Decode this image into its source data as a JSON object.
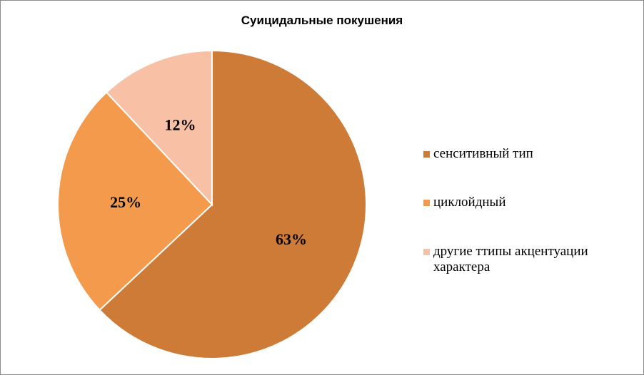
{
  "chart_data": {
    "type": "pie",
    "title": "Суицидальные покушения",
    "slices": [
      {
        "name": "сенситивный тип",
        "value": 63,
        "label": "63%",
        "color": "#cd7b37"
      },
      {
        "name": "циклойдный",
        "value": 25,
        "label": "25%",
        "color": "#f39a4c"
      },
      {
        "name": "другие ттипы акцентуации характера",
        "value": 12,
        "label": "12%",
        "color": "#f8c1a5"
      }
    ],
    "legend_position": "right"
  }
}
